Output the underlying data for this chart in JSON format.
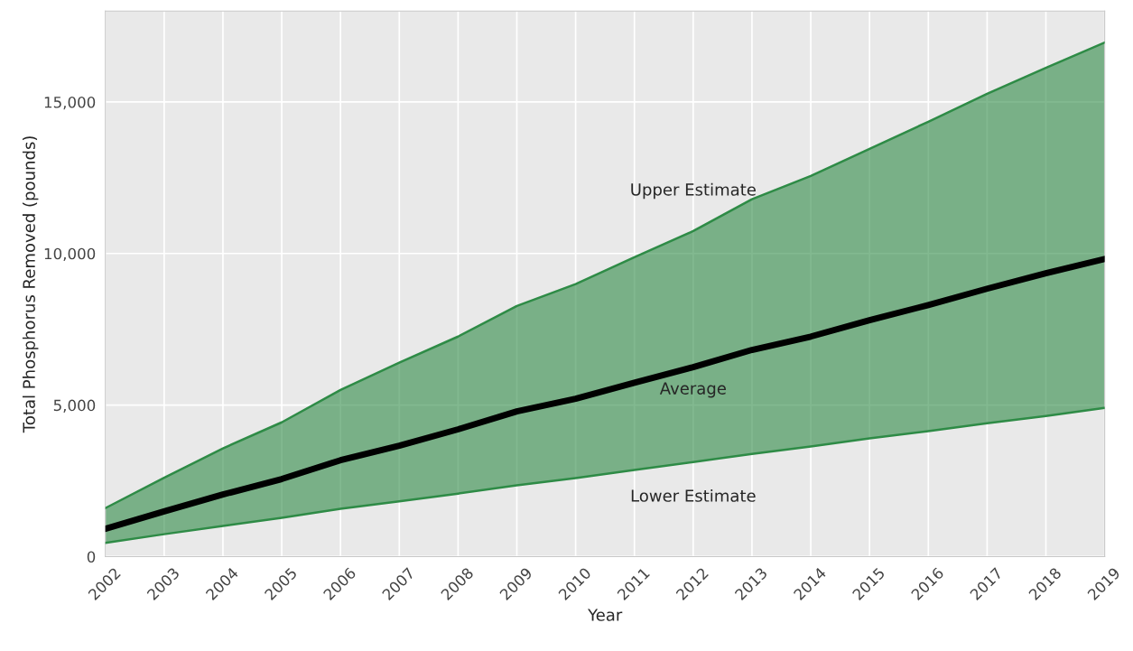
{
  "chart_data": {
    "type": "line",
    "xlabel": "Year",
    "ylabel": "Total Phosphorus Removed (pounds)",
    "x": [
      2002,
      2003,
      2004,
      2005,
      2006,
      2007,
      2008,
      2009,
      2010,
      2011,
      2012,
      2013,
      2014,
      2015,
      2016,
      2017,
      2018,
      2019
    ],
    "series": [
      {
        "name": "Upper Estimate",
        "color": "#2e8b46",
        "values": [
          1600,
          2600,
          3570,
          4430,
          5500,
          6400,
          7260,
          8270,
          8990,
          9880,
          10740,
          11790,
          12560,
          13450,
          14350,
          15270,
          16130,
          16960
        ]
      },
      {
        "name": "Average",
        "color": "#000000",
        "values": [
          920,
          1490,
          2050,
          2560,
          3180,
          3660,
          4200,
          4790,
          5210,
          5740,
          6250,
          6820,
          7260,
          7800,
          8300,
          8840,
          9350,
          9820
        ],
        "lower": [
          450,
          740,
          1010,
          1280,
          1580,
          1820,
          2080,
          2350,
          2590,
          2860,
          3120,
          3390,
          3630,
          3900,
          4140,
          4400,
          4640,
          4910
        ],
        "upper": [
          1600,
          2600,
          3570,
          4430,
          5500,
          6400,
          7260,
          8270,
          8990,
          9880,
          10740,
          11790,
          12560,
          13450,
          14350,
          15270,
          16130,
          16960
        ]
      },
      {
        "name": "Lower Estimate",
        "color": "#2e8b46",
        "values": [
          450,
          740,
          1010,
          1280,
          1580,
          1820,
          2080,
          2350,
          2590,
          2860,
          3120,
          3390,
          3630,
          3900,
          4140,
          4400,
          4640,
          4910
        ]
      }
    ],
    "xlim": [
      2002,
      2019
    ],
    "ylim": [
      0,
      18000
    ],
    "xticks": [
      2002,
      2003,
      2004,
      2005,
      2006,
      2007,
      2008,
      2009,
      2010,
      2011,
      2012,
      2013,
      2014,
      2015,
      2016,
      2017,
      2018,
      2019
    ],
    "yticks": [
      {
        "value": 0,
        "label": "0"
      },
      {
        "value": 5000,
        "label": "5,000"
      },
      {
        "value": 10000,
        "label": "10,000"
      },
      {
        "value": 15000,
        "label": "15,000"
      }
    ],
    "grid": true,
    "line_style": "solid",
    "marker": "none"
  }
}
